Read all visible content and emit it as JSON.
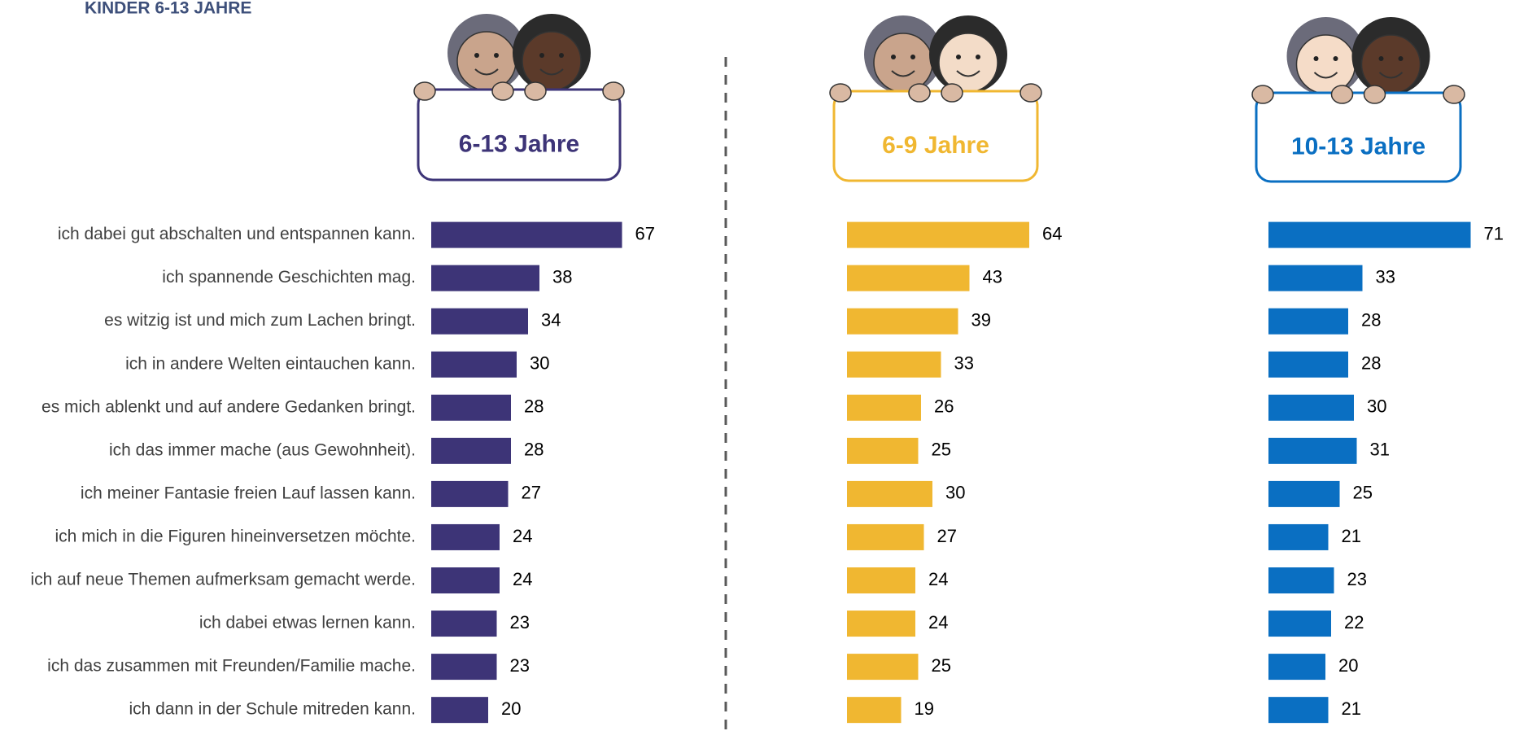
{
  "title": "KINDER 6-13 JAHRE",
  "chart_data": [
    {
      "type": "bar",
      "title": "6-13 Jahre",
      "color": "#3d3477",
      "categories": [
        "ich dabei gut abschalten und entspannen kann.",
        "ich spannende Geschichten mag.",
        "es witzig ist und mich zum Lachen bringt.",
        "ich in andere Welten eintauchen kann.",
        "es mich ablenkt und auf andere Gedanken bringt.",
        "ich das immer mache (aus Gewohnheit).",
        "ich meiner Fantasie freien Lauf lassen kann.",
        "ich mich in die Figuren hineinversetzen möchte.",
        "ich auf neue Themen aufmerksam gemacht werde.",
        "ich dabei etwas lernen kann.",
        "ich das zusammen mit Freunden/Familie mache.",
        "ich dann in der Schule mitreden kann."
      ],
      "values": [
        67,
        38,
        34,
        30,
        28,
        28,
        27,
        24,
        24,
        23,
        23,
        20
      ]
    },
    {
      "type": "bar",
      "title": "6-9 Jahre",
      "color": "#f0b731",
      "values": [
        64,
        43,
        39,
        33,
        26,
        25,
        30,
        27,
        24,
        24,
        25,
        19
      ]
    },
    {
      "type": "bar",
      "title": "10-13 Jahre",
      "color": "#0a6fc2",
      "values": [
        71,
        33,
        28,
        28,
        30,
        31,
        25,
        21,
        23,
        22,
        20,
        21
      ]
    }
  ]
}
